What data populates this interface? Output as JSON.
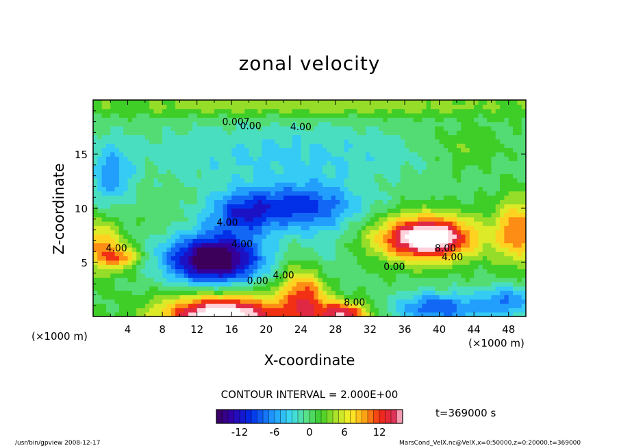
{
  "chart_data": {
    "type": "heatmap",
    "title": "zonal velocity",
    "xlabel": "X-coordinate",
    "ylabel": "Z-coordinate",
    "x_unit_left": "(×1000 m)",
    "x_unit_right": "(×1000 m)",
    "xlim": [
      0,
      50
    ],
    "ylim": [
      0,
      20
    ],
    "x_ticks": [
      4,
      8,
      12,
      16,
      20,
      24,
      28,
      32,
      36,
      40,
      44,
      48
    ],
    "y_ticks": [
      5,
      10,
      15
    ],
    "contour_interval_label": "CONTOUR INTERVAL = 2.000E+00",
    "contour_labels": [
      {
        "text": "0.007",
        "x": 16.5,
        "z": 17.7
      },
      {
        "text": "0.00",
        "x": 18.2,
        "z": 17.3
      },
      {
        "text": "4.00",
        "x": 24.0,
        "z": 17.2
      },
      {
        "text": "4.00",
        "x": 15.5,
        "z": 8.4
      },
      {
        "text": "4.00",
        "x": 17.2,
        "z": 6.4
      },
      {
        "text": "4.00",
        "x": 2.7,
        "z": 6.0
      },
      {
        "text": "0.00",
        "x": 19.0,
        "z": 3.0
      },
      {
        "text": "4.00",
        "x": 22.0,
        "z": 3.5
      },
      {
        "text": "0.00",
        "x": 34.8,
        "z": 4.3
      },
      {
        "text": "8.00",
        "x": 40.7,
        "z": 6.0
      },
      {
        "text": "4.00",
        "x": 41.5,
        "z": 5.2
      },
      {
        "text": "8.00",
        "x": 30.2,
        "z": 1.0
      }
    ],
    "features": [
      {
        "type": "min",
        "x": 14.0,
        "z": 5.3,
        "amp": -19,
        "rx": 5.5,
        "rz": 2.3
      },
      {
        "type": "min",
        "x": 24.0,
        "z": 10.2,
        "amp": -10,
        "rx": 7.0,
        "rz": 2.2
      },
      {
        "type": "min",
        "x": 17.0,
        "z": 9.5,
        "amp": -8,
        "rx": 4.0,
        "rz": 2.0
      },
      {
        "type": "min",
        "x": 22.0,
        "z": 15.0,
        "amp": -4,
        "rx": 18.0,
        "rz": 3.0
      },
      {
        "type": "min",
        "x": 2.0,
        "z": 13.0,
        "amp": -6,
        "rx": 2.5,
        "rz": 3.0
      },
      {
        "type": "min",
        "x": 40.0,
        "z": 0.8,
        "amp": -9,
        "rx": 5.5,
        "rz": 1.5
      },
      {
        "type": "min",
        "x": 48.0,
        "z": 1.5,
        "amp": -7,
        "rx": 3.0,
        "rz": 1.5
      },
      {
        "type": "min",
        "x": 26.0,
        "z": 5.0,
        "amp": -4,
        "rx": 3.0,
        "rz": 3.0
      },
      {
        "type": "max",
        "x": 38.5,
        "z": 7.3,
        "amp": 20,
        "rx": 5.5,
        "rz": 2.0
      },
      {
        "type": "max",
        "x": 15.0,
        "z": 0.0,
        "amp": 20,
        "rx": 7.0,
        "rz": 2.0
      },
      {
        "type": "max",
        "x": 24.5,
        "z": 2.2,
        "amp": 12,
        "rx": 2.8,
        "rz": 3.0
      },
      {
        "type": "max",
        "x": 29.0,
        "z": 0.2,
        "amp": 14,
        "rx": 3.0,
        "rz": 1.2
      },
      {
        "type": "max",
        "x": 0.8,
        "z": 6.5,
        "amp": 9,
        "rx": 2.5,
        "rz": 2.5
      },
      {
        "type": "max",
        "x": 3.5,
        "z": 5.5,
        "amp": 8,
        "rx": 2.0,
        "rz": 1.0
      },
      {
        "type": "max",
        "x": 49.0,
        "z": 8.0,
        "amp": 10,
        "rx": 2.5,
        "rz": 3.0
      },
      {
        "type": "max",
        "x": 25.0,
        "z": 19.5,
        "amp": 4,
        "rx": 30.0,
        "rz": 1.0
      },
      {
        "type": "max",
        "x": 43.0,
        "z": 15.5,
        "amp": 3,
        "rx": 4.0,
        "rz": 2.0
      }
    ]
  },
  "colorbar": {
    "min": -16,
    "max": 16,
    "ticks": [
      -12,
      -6,
      0,
      6,
      12
    ]
  },
  "time_label": "t=369000 s",
  "footer_left": "/usr/bin/gpview  2008-12-17",
  "footer_right": "MarsCond_VelX.nc@VelX,x=0:50000,z=0:20000,t=369000"
}
